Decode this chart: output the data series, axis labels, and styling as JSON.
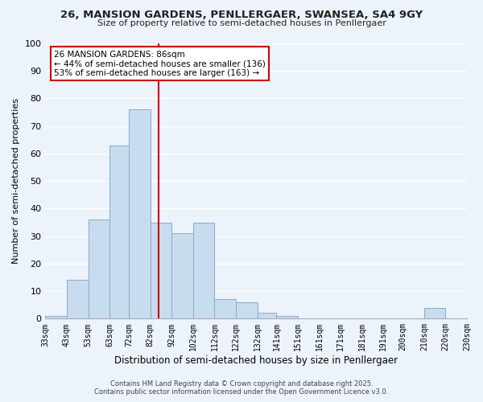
{
  "title_line1": "26, MANSION GARDENS, PENLLERGAER, SWANSEA, SA4 9GY",
  "title_line2": "Size of property relative to semi-detached houses in Penllergaer",
  "xlabel": "Distribution of semi-detached houses by size in Penllergaer",
  "ylabel": "Number of semi-detached properties",
  "bar_color": "#c8dcf0",
  "bar_edge_color": "#88aacc",
  "background_color": "#edf3fb",
  "grid_color": "#ffffff",
  "annotation_box_color": "#ffffff",
  "annotation_box_edge": "#cc0000",
  "vline_color": "#cc0000",
  "vline_x": 86,
  "annotation_title": "26 MANSION GARDENS: 86sqm",
  "annotation_line2": "← 44% of semi-detached houses are smaller (136)",
  "annotation_line3": "53% of semi-detached houses are larger (163) →",
  "footer_line1": "Contains HM Land Registry data © Crown copyright and database right 2025.",
  "footer_line2": "Contains public sector information licensed under the Open Government Licence v3.0.",
  "bins": [
    33,
    43,
    53,
    63,
    72,
    82,
    92,
    102,
    112,
    122,
    132,
    141,
    151,
    161,
    171,
    181,
    191,
    200,
    210,
    220,
    230
  ],
  "counts": [
    1,
    14,
    36,
    63,
    76,
    35,
    31,
    35,
    7,
    6,
    2,
    1,
    0,
    0,
    0,
    0,
    0,
    0,
    4,
    0
  ],
  "tick_labels": [
    "33sqm",
    "43sqm",
    "53sqm",
    "63sqm",
    "72sqm",
    "82sqm",
    "92sqm",
    "102sqm",
    "112sqm",
    "122sqm",
    "132sqm",
    "141sqm",
    "151sqm",
    "161sqm",
    "171sqm",
    "181sqm",
    "191sqm",
    "200sqm",
    "210sqm",
    "220sqm",
    "230sqm"
  ],
  "ylim": [
    0,
    100
  ],
  "yticks": [
    0,
    10,
    20,
    30,
    40,
    50,
    60,
    70,
    80,
    90,
    100
  ]
}
